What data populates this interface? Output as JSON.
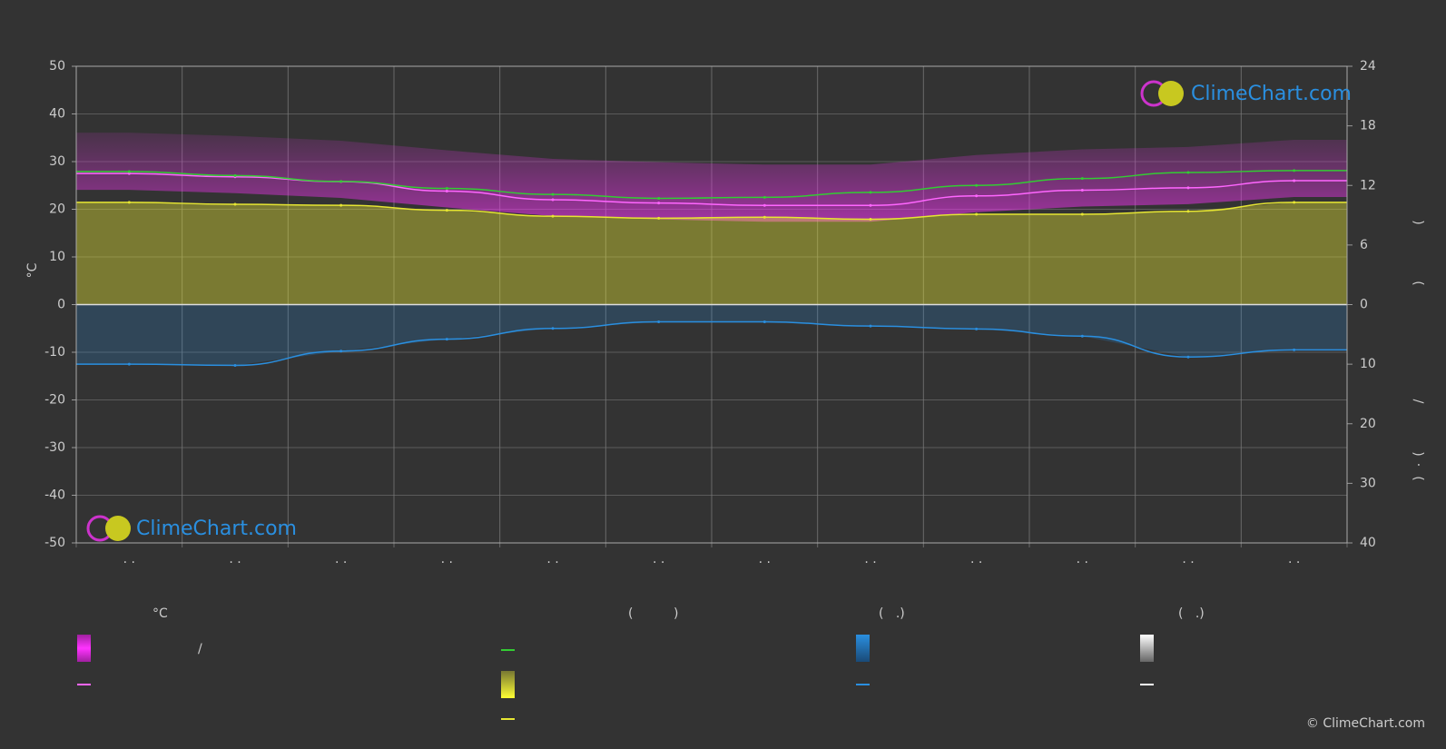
{
  "chart_data": {
    "type": "line",
    "y_label": "°C",
    "right_labels": [
      ")",
      "(",
      "/",
      ")",
      "·",
      "("
    ],
    "categories": [
      "· ·",
      "· ·",
      "· ·",
      "· ·",
      "· ·",
      "· ·",
      "· ·",
      "· ·",
      "· ·",
      "· ·",
      "· ·",
      "· ·"
    ],
    "ylim": [
      -50,
      50
    ],
    "yticks": [
      -50,
      -40,
      -30,
      -20,
      -10,
      0,
      10,
      20,
      30,
      40,
      50
    ],
    "y2lim": [
      0,
      24
    ],
    "y2ticks": [
      0,
      6,
      12,
      18,
      24
    ],
    "y3lim": [
      0,
      40
    ],
    "y3ticks": [
      0,
      10,
      20,
      30,
      40
    ],
    "grid": true,
    "series": [
      {
        "color": "#ff66ff",
        "values": [
          27.5,
          26.8,
          25.8,
          23.8,
          22.0,
          21.3,
          20.8,
          20.8,
          22.8,
          24.0,
          24.5,
          26.0
        ]
      },
      {
        "color": "#33cc33",
        "axis": "y2",
        "values": [
          13.4,
          13.0,
          12.4,
          11.7,
          11.1,
          10.7,
          10.8,
          11.3,
          12.0,
          12.7,
          13.3,
          13.5
        ]
      },
      {
        "color": "#e6e633",
        "axis": "y2",
        "fill": true,
        "values": [
          10.3,
          10.1,
          10.0,
          9.5,
          8.9,
          8.7,
          8.8,
          8.6,
          9.1,
          9.1,
          9.4,
          10.3
        ]
      },
      {
        "color": "#2a8fe0",
        "axis": "y3",
        "fill": true,
        "values": [
          10.0,
          10.2,
          7.8,
          5.8,
          4.0,
          2.9,
          2.9,
          3.6,
          4.1,
          5.3,
          8.8,
          7.6
        ]
      }
    ],
    "legend_headings": [
      "°C",
      "(          )",
      "(   .)",
      "(   .)"
    ],
    "legend_text": "/",
    "watermark": "ClimeChart.com",
    "copyright": "© ClimeChart.com"
  }
}
